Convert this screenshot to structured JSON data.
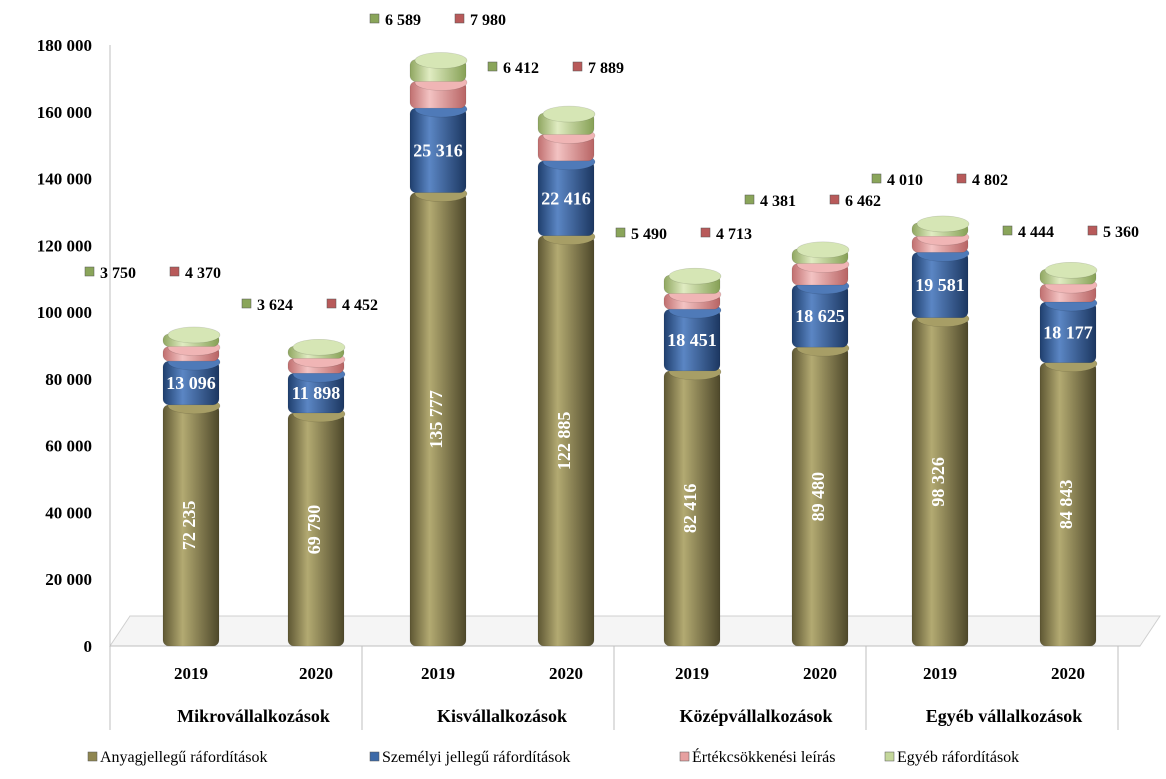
{
  "chart_data": {
    "type": "bar",
    "stacked": true,
    "title": "",
    "xlabel": "",
    "ylabel": "",
    "ylim": [
      0,
      180000
    ],
    "yticks": [
      "0",
      "20 000",
      "40 000",
      "60 000",
      "80 000",
      "100 000",
      "120 000",
      "140 000",
      "160 000",
      "180 000"
    ],
    "yticks_values": [
      0,
      20000,
      40000,
      60000,
      80000,
      100000,
      120000,
      140000,
      160000,
      180000
    ],
    "groups": [
      {
        "name": "Mikrovállalkozások",
        "years": [
          "2019",
          "2020"
        ]
      },
      {
        "name": "Kisvállalkozások",
        "years": [
          "2019",
          "2020"
        ]
      },
      {
        "name": "Középvállalkozások",
        "years": [
          "2019",
          "2020"
        ]
      },
      {
        "name": "Egyéb vállalkozások",
        "years": [
          "2019",
          "2020"
        ]
      }
    ],
    "series": [
      {
        "name": "Anyagjellegű ráfordítások",
        "color": "#8f8650",
        "values": [
          72235,
          69790,
          135777,
          122885,
          82416,
          89480,
          98326,
          84843
        ],
        "labels": [
          "72 235",
          "69 790",
          "135 777",
          "122 885",
          "82 416",
          "89 480",
          "98 326",
          "84 843"
        ]
      },
      {
        "name": "Személyi jellegű ráfordítások",
        "color": "#3d6aa8",
        "values": [
          13096,
          11898,
          25316,
          22416,
          18451,
          18625,
          19581,
          18177
        ],
        "labels": [
          "13 096",
          "11 898",
          "25 316",
          "22 416",
          "18 451",
          "18 625",
          "19 581",
          "18 177"
        ]
      },
      {
        "name": "Értékcsökkenési leírás",
        "color": "#e6a0a0",
        "values": [
          4370,
          4452,
          7980,
          7889,
          4713,
          6462,
          4802,
          5360
        ],
        "labels": [
          "4 370",
          "4 452",
          "7 980",
          "7 889",
          "4 713",
          "6 462",
          "4 802",
          "5 360"
        ]
      },
      {
        "name": "Egyéb ráfordítások",
        "color": "#c4d79b",
        "values": [
          3750,
          3624,
          6589,
          6412,
          5490,
          4381,
          4010,
          4444
        ],
        "labels": [
          "3 750",
          "3 624",
          "6 589",
          "6 412",
          "5 490",
          "4 381",
          "4 010",
          "4 444"
        ]
      }
    ],
    "legend": {
      "position": "bottom"
    },
    "grid": false
  },
  "colors": {
    "material": "#8f8650",
    "personnel": "#3d6aa8",
    "depreciation": "#e6a0a0",
    "other": "#c4d79b",
    "marker_depreciation": "#b85a5a",
    "marker_other": "#8aa55a"
  }
}
